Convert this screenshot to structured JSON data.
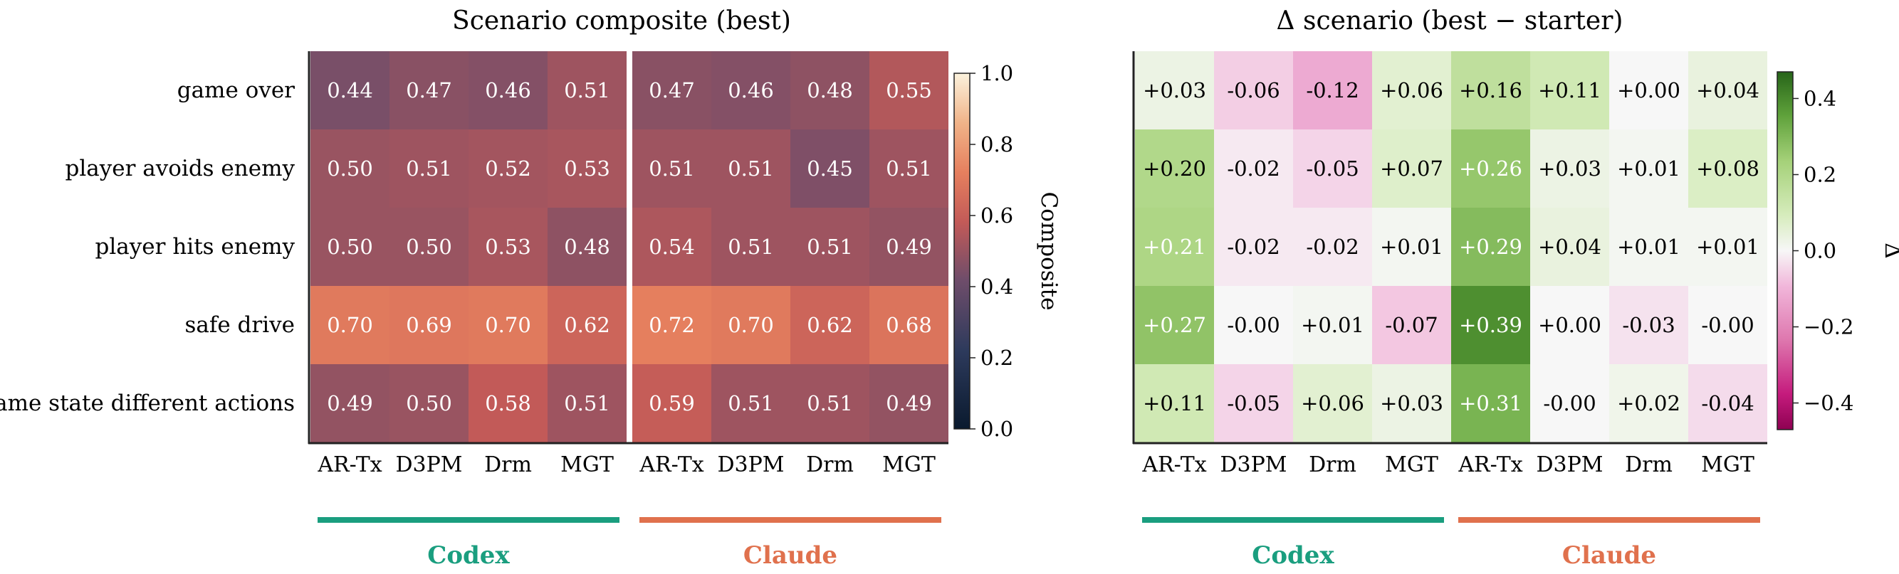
{
  "chart_data": [
    {
      "type": "heatmap",
      "title": "Scenario composite (best)",
      "rows": [
        "game over",
        "player avoids enemy",
        "player hits enemy",
        "safe drive",
        "same state different actions"
      ],
      "columns": [
        "AR-Tx",
        "D3PM",
        "Drm",
        "MGT",
        "AR-Tx",
        "D3PM",
        "Drm",
        "MGT"
      ],
      "values": [
        [
          0.44,
          0.47,
          0.46,
          0.51,
          0.47,
          0.46,
          0.48,
          0.55
        ],
        [
          0.5,
          0.51,
          0.52,
          0.53,
          0.51,
          0.51,
          0.45,
          0.51
        ],
        [
          0.5,
          0.5,
          0.53,
          0.48,
          0.54,
          0.51,
          0.51,
          0.49
        ],
        [
          0.7,
          0.69,
          0.7,
          0.62,
          0.72,
          0.7,
          0.62,
          0.68
        ],
        [
          0.49,
          0.5,
          0.58,
          0.51,
          0.59,
          0.51,
          0.51,
          0.49
        ]
      ],
      "value_labels": [
        [
          "0.44",
          "0.47",
          "0.46",
          "0.51",
          "0.47",
          "0.46",
          "0.48",
          "0.55"
        ],
        [
          "0.50",
          "0.51",
          "0.52",
          "0.53",
          "0.51",
          "0.51",
          "0.45",
          "0.51"
        ],
        [
          "0.50",
          "0.50",
          "0.53",
          "0.48",
          "0.54",
          "0.51",
          "0.51",
          "0.49"
        ],
        [
          "0.70",
          "0.69",
          "0.70",
          "0.62",
          "0.72",
          "0.70",
          "0.62",
          "0.68"
        ],
        [
          "0.49",
          "0.50",
          "0.58",
          "0.51",
          "0.59",
          "0.51",
          "0.51",
          "0.49"
        ]
      ],
      "groups": [
        {
          "name": "Codex",
          "color": "#1a9e7f"
        },
        {
          "name": "Claude",
          "color": "#e0714d"
        }
      ],
      "colorbar": {
        "label": "Composite",
        "range": [
          0.0,
          1.0
        ],
        "ticks": [
          "0.0",
          "0.2",
          "0.4",
          "0.6",
          "0.8",
          "1.0"
        ],
        "colormap": "dark-navy-to-cream (flare-like)"
      }
    },
    {
      "type": "heatmap",
      "title": "Δ scenario (best − starter)",
      "rows": [
        "game over",
        "player avoids enemy",
        "player hits enemy",
        "safe drive",
        "same state different actions"
      ],
      "columns": [
        "AR-Tx",
        "D3PM",
        "Drm",
        "MGT",
        "AR-Tx",
        "D3PM",
        "Drm",
        "MGT"
      ],
      "values": [
        [
          0.03,
          -0.06,
          -0.12,
          0.06,
          0.16,
          0.11,
          0.0,
          0.04
        ],
        [
          0.2,
          -0.02,
          -0.05,
          0.07,
          0.26,
          0.03,
          0.01,
          0.08
        ],
        [
          0.21,
          -0.02,
          -0.02,
          0.01,
          0.29,
          0.04,
          0.01,
          0.01
        ],
        [
          0.27,
          -0.0,
          0.01,
          -0.07,
          0.39,
          0.0,
          -0.03,
          -0.0
        ],
        [
          0.11,
          -0.05,
          0.06,
          0.03,
          0.31,
          -0.0,
          0.02,
          -0.04
        ]
      ],
      "value_labels": [
        [
          "+0.03",
          "-0.06",
          "-0.12",
          "+0.06",
          "+0.16",
          "+0.11",
          "+0.00",
          "+0.04"
        ],
        [
          "+0.20",
          "-0.02",
          "-0.05",
          "+0.07",
          "+0.26",
          "+0.03",
          "+0.01",
          "+0.08"
        ],
        [
          "+0.21",
          "-0.02",
          "-0.02",
          "+0.01",
          "+0.29",
          "+0.04",
          "+0.01",
          "+0.01"
        ],
        [
          "+0.27",
          "-0.00",
          "+0.01",
          "-0.07",
          "+0.39",
          "+0.00",
          "-0.03",
          "-0.00"
        ],
        [
          "+0.11",
          "-0.05",
          "+0.06",
          "+0.03",
          "+0.31",
          "-0.00",
          "+0.02",
          "-0.04"
        ]
      ],
      "groups": [
        {
          "name": "Codex",
          "color": "#1a9e7f"
        },
        {
          "name": "Claude",
          "color": "#e0714d"
        }
      ],
      "colorbar": {
        "label": "Δ",
        "range": [
          -0.47,
          0.47
        ],
        "ticks": [
          "−0.4",
          "−0.2",
          "0.0",
          "0.2",
          "0.4"
        ],
        "tick_values": [
          -0.4,
          -0.2,
          0.0,
          0.2,
          0.4
        ],
        "colormap": "PiYG diverging"
      }
    }
  ]
}
